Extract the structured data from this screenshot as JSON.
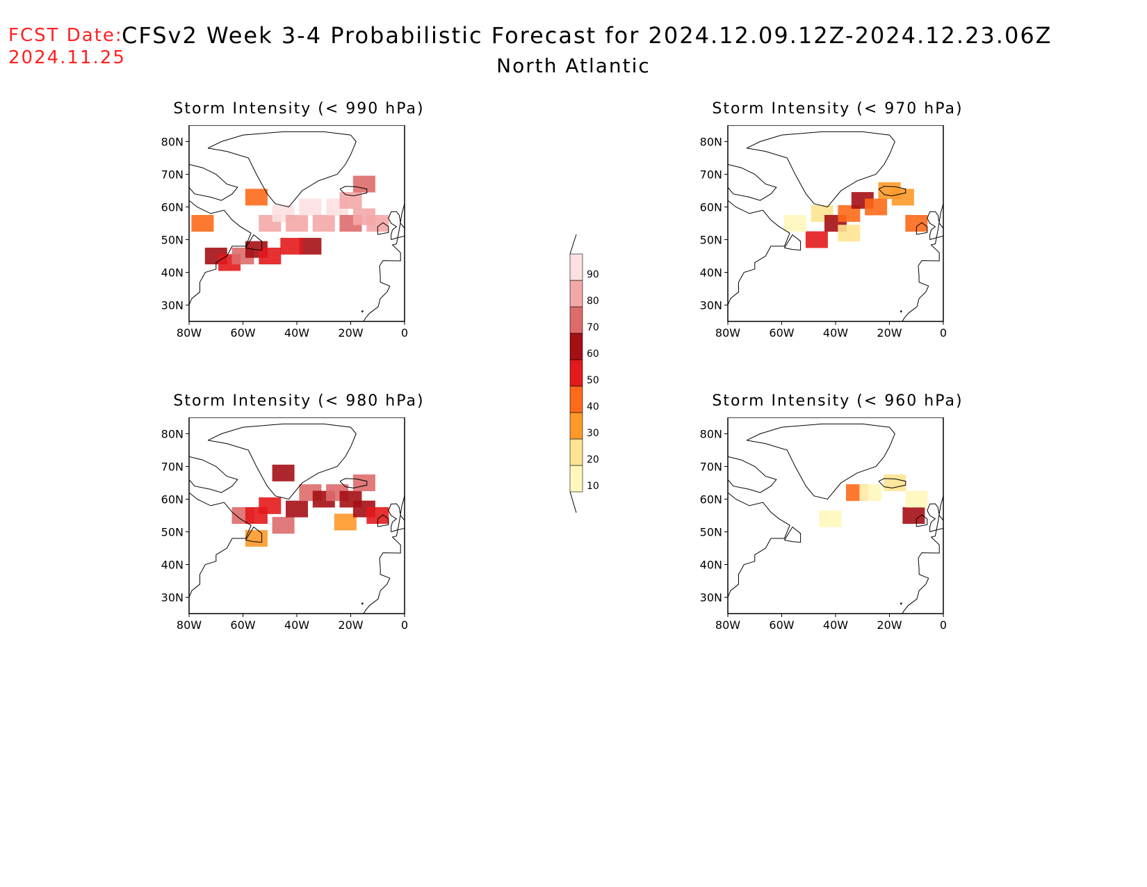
{
  "header": {
    "fcst_label": "FCST Date:",
    "fcst_date": "2024.11.25",
    "title": "CFSv2 Week 3-4 Probabilistic Forecast for 2024.12.09.12Z-2024.12.23.06Z",
    "region": "North Atlantic"
  },
  "axes": {
    "lat_ticks": [
      "80N",
      "70N",
      "60N",
      "50N",
      "40N",
      "30N"
    ],
    "lon_ticks": [
      "80W",
      "60W",
      "40W",
      "20W",
      "0"
    ]
  },
  "legend": {
    "levels": [
      "10",
      "20",
      "30",
      "40",
      "50",
      "60",
      "70",
      "80",
      "90"
    ],
    "colors": [
      "#fff7bc",
      "#fee391",
      "#fe9929",
      "#fd6a1a",
      "#e31a1c",
      "#a50f15",
      "#de6b6b",
      "#f4a7a7",
      "#fde0e0"
    ]
  },
  "panels": [
    {
      "title": "Storm Intensity (< 990 hPa)"
    },
    {
      "title": "Storm Intensity (< 970 hPa)"
    },
    {
      "title": "Storm Intensity (< 980 hPa)"
    },
    {
      "title": "Storm Intensity (< 960 hPa)"
    }
  ],
  "chart_data": {
    "type": "heatmap",
    "description_units": "probability (%)",
    "lon_range": [
      -80,
      0
    ],
    "lat_range": [
      25,
      85
    ],
    "colorbar_levels": [
      10,
      20,
      30,
      40,
      50,
      60,
      70,
      80,
      90
    ],
    "maps": [
      {
        "threshold": "< 990 hPa",
        "cells": [
          {
            "lon": -75,
            "lat": 55,
            "p": 40
          },
          {
            "lon": -70,
            "lat": 45,
            "p": 60
          },
          {
            "lon": -65,
            "lat": 43,
            "p": 50
          },
          {
            "lon": -60,
            "lat": 45,
            "p": 70
          },
          {
            "lon": -55,
            "lat": 47,
            "p": 60
          },
          {
            "lon": -50,
            "lat": 45,
            "p": 55
          },
          {
            "lon": -50,
            "lat": 55,
            "p": 85
          },
          {
            "lon": -45,
            "lat": 58,
            "p": 90
          },
          {
            "lon": -40,
            "lat": 55,
            "p": 80
          },
          {
            "lon": -35,
            "lat": 60,
            "p": 90
          },
          {
            "lon": -30,
            "lat": 55,
            "p": 85
          },
          {
            "lon": -25,
            "lat": 60,
            "p": 90
          },
          {
            "lon": -20,
            "lat": 62,
            "p": 80
          },
          {
            "lon": -20,
            "lat": 55,
            "p": 75
          },
          {
            "lon": -15,
            "lat": 57,
            "p": 85
          },
          {
            "lon": -10,
            "lat": 55,
            "p": 80
          },
          {
            "lon": -35,
            "lat": 48,
            "p": 65
          },
          {
            "lon": -42,
            "lat": 48,
            "p": 55
          },
          {
            "lon": -55,
            "lat": 63,
            "p": 40
          },
          {
            "lon": -15,
            "lat": 67,
            "p": 70
          }
        ]
      },
      {
        "threshold": "< 970 hPa",
        "cells": [
          {
            "lon": -45,
            "lat": 58,
            "p": 20
          },
          {
            "lon": -40,
            "lat": 55,
            "p": 60
          },
          {
            "lon": -35,
            "lat": 58,
            "p": 40
          },
          {
            "lon": -30,
            "lat": 62,
            "p": 60
          },
          {
            "lon": -25,
            "lat": 60,
            "p": 40
          },
          {
            "lon": -15,
            "lat": 63,
            "p": 30
          },
          {
            "lon": -10,
            "lat": 55,
            "p": 40
          },
          {
            "lon": -47,
            "lat": 50,
            "p": 50
          },
          {
            "lon": -55,
            "lat": 55,
            "p": 10
          },
          {
            "lon": -35,
            "lat": 52,
            "p": 20
          },
          {
            "lon": -20,
            "lat": 65,
            "p": 30
          }
        ]
      },
      {
        "threshold": "< 980 hPa",
        "cells": [
          {
            "lon": -60,
            "lat": 55,
            "p": 70
          },
          {
            "lon": -55,
            "lat": 55,
            "p": 55
          },
          {
            "lon": -50,
            "lat": 58,
            "p": 50
          },
          {
            "lon": -45,
            "lat": 52,
            "p": 70
          },
          {
            "lon": -40,
            "lat": 57,
            "p": 60
          },
          {
            "lon": -35,
            "lat": 62,
            "p": 70
          },
          {
            "lon": -30,
            "lat": 60,
            "p": 65
          },
          {
            "lon": -25,
            "lat": 62,
            "p": 70
          },
          {
            "lon": -22,
            "lat": 53,
            "p": 30
          },
          {
            "lon": -20,
            "lat": 60,
            "p": 60
          },
          {
            "lon": -15,
            "lat": 57,
            "p": 60
          },
          {
            "lon": -10,
            "lat": 55,
            "p": 50
          },
          {
            "lon": -45,
            "lat": 68,
            "p": 60
          },
          {
            "lon": -15,
            "lat": 65,
            "p": 70
          },
          {
            "lon": -55,
            "lat": 48,
            "p": 30
          }
        ]
      },
      {
        "threshold": "< 960 hPa",
        "cells": [
          {
            "lon": -32,
            "lat": 62,
            "p": 40
          },
          {
            "lon": -27,
            "lat": 62,
            "p": 15
          },
          {
            "lon": -18,
            "lat": 65,
            "p": 20
          },
          {
            "lon": -11,
            "lat": 55,
            "p": 60
          },
          {
            "lon": -42,
            "lat": 54,
            "p": 10
          },
          {
            "lon": -10,
            "lat": 60,
            "p": 10
          }
        ]
      }
    ]
  }
}
